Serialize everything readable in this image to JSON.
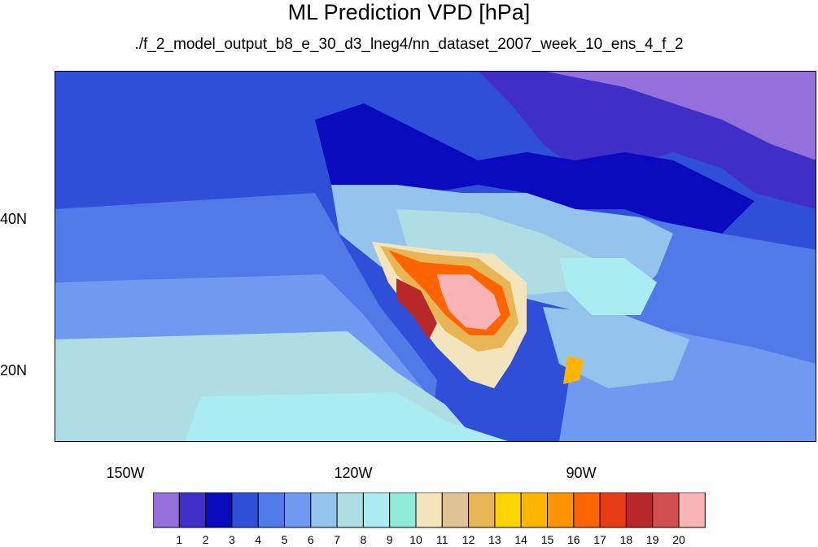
{
  "title": "ML Prediction VPD [hPa]",
  "subtitle": "./f_2_model_output_b8_e_30_d3_lneg4/nn_dataset_2007_week_10_ens_4_f_2",
  "axes": {
    "lat_labels": [
      "40N",
      "20N"
    ],
    "lon_labels": [
      "150W",
      "120W",
      "90W"
    ]
  },
  "colorbar": {
    "labels": [
      "1",
      "2",
      "3",
      "4",
      "5",
      "6",
      "7",
      "8",
      "9",
      "10",
      "11",
      "12",
      "13",
      "14",
      "15",
      "16",
      "17",
      "18",
      "19",
      "20"
    ],
    "colors": [
      "#9370DB",
      "#3F2FC8",
      "#0A0ABF",
      "#2F4FD8",
      "#4F7AE8",
      "#6F9AF0",
      "#94C4EC",
      "#AEDDE3",
      "#A9ECF2",
      "#8FEAD8",
      "#F4E4BC",
      "#E0C394",
      "#E8B654",
      "#FFD400",
      "#FFB400",
      "#FF9400",
      "#FF6400",
      "#E83C14",
      "#B82828",
      "#D25050",
      "#F8B4B4"
    ]
  }
}
